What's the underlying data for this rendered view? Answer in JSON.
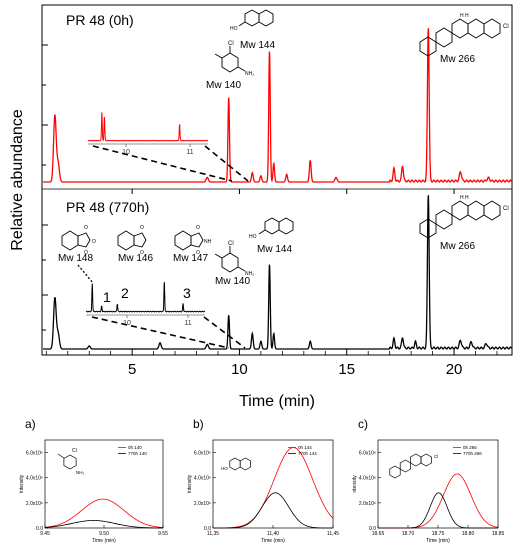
{
  "chart_data": [
    {
      "type": "line",
      "title": "",
      "xlabel": "Time (min)",
      "ylabel": "Relative abundance",
      "xlim": [
        0.8,
        22.7
      ],
      "xticks": [
        5,
        10,
        15,
        20
      ],
      "grid": false,
      "panels": [
        {
          "label": "PR 48 (0h)",
          "color": "#ff0000",
          "baseline": 0.0,
          "peaks": [
            {
              "t": 1.4,
              "h": 0.43,
              "w": 0.06
            },
            {
              "t": 1.55,
              "h": 0.12,
              "w": 0.06
            },
            {
              "t": 8.5,
              "h": 0.03,
              "w": 0.05
            },
            {
              "t": 9.5,
              "h": 0.55,
              "w": 0.035
            },
            {
              "t": 10.6,
              "h": 0.06,
              "w": 0.04
            },
            {
              "t": 11.0,
              "h": 0.04,
              "w": 0.04
            },
            {
              "t": 11.4,
              "h": 0.85,
              "w": 0.035
            },
            {
              "t": 11.6,
              "h": 0.12,
              "w": 0.035
            },
            {
              "t": 12.2,
              "h": 0.05,
              "w": 0.04
            },
            {
              "t": 13.3,
              "h": 0.14,
              "w": 0.04
            },
            {
              "t": 14.5,
              "h": 0.03,
              "w": 0.05
            },
            {
              "t": 17.2,
              "h": 0.08,
              "w": 0.04
            },
            {
              "t": 17.6,
              "h": 0.1,
              "w": 0.04
            },
            {
              "t": 18.8,
              "h": 1.0,
              "w": 0.04
            },
            {
              "t": 20.3,
              "h": 0.06,
              "w": 0.05
            },
            {
              "t": 21.6,
              "h": 0.02,
              "w": 0.06
            }
          ],
          "inset": {
            "xticks": [
              "10",
              "11"
            ],
            "peaks": [
              {
                "t": 9.62,
                "h": 0.95
              },
              {
                "t": 9.66,
                "h": 0.8
              },
              {
                "t": 10.85,
                "h": 0.55
              }
            ]
          },
          "annotations": [
            {
              "text": "Mw 140",
              "t": 9.5
            },
            {
              "text": "Mw 144",
              "t": 11.4
            },
            {
              "text": "Mw 266",
              "t": 18.8
            }
          ]
        },
        {
          "label": "PR 48 (770h)",
          "color": "#000000",
          "baseline": 0.0,
          "peaks": [
            {
              "t": 1.4,
              "h": 0.33,
              "w": 0.06
            },
            {
              "t": 1.55,
              "h": 0.1,
              "w": 0.06
            },
            {
              "t": 3.0,
              "h": 0.02,
              "w": 0.05
            },
            {
              "t": 6.3,
              "h": 0.04,
              "w": 0.05
            },
            {
              "t": 8.5,
              "h": 0.03,
              "w": 0.05
            },
            {
              "t": 9.5,
              "h": 0.22,
              "w": 0.035
            },
            {
              "t": 10.6,
              "h": 0.1,
              "w": 0.04
            },
            {
              "t": 11.0,
              "h": 0.05,
              "w": 0.04
            },
            {
              "t": 11.4,
              "h": 0.55,
              "w": 0.035
            },
            {
              "t": 11.6,
              "h": 0.1,
              "w": 0.035
            },
            {
              "t": 13.3,
              "h": 0.05,
              "w": 0.04
            },
            {
              "t": 17.2,
              "h": 0.06,
              "w": 0.04
            },
            {
              "t": 17.6,
              "h": 0.07,
              "w": 0.04
            },
            {
              "t": 18.2,
              "h": 0.04,
              "w": 0.04
            },
            {
              "t": 18.8,
              "h": 1.0,
              "w": 0.04
            },
            {
              "t": 20.3,
              "h": 0.05,
              "w": 0.05
            },
            {
              "t": 20.8,
              "h": 0.04,
              "w": 0.05
            },
            {
              "t": 21.5,
              "h": 0.03,
              "w": 0.05
            }
          ],
          "inset": {
            "xticks": [
              "10",
              "11"
            ],
            "peaks": [
              {
                "t": 9.3,
                "h": 0.78
              },
              {
                "t": 9.45,
                "h": 0.15
              },
              {
                "t": 9.7,
                "h": 0.22
              },
              {
                "t": 10.45,
                "h": 0.85
              },
              {
                "t": 10.75,
                "h": 0.22
              }
            ],
            "peak_labels": [
              "1",
              "2",
              "3"
            ]
          },
          "annotations": [
            {
              "text": "Mw 148"
            },
            {
              "text": "Mw 146"
            },
            {
              "text": "Mw 147"
            },
            {
              "text": "Mw 140",
              "t": 9.5
            },
            {
              "text": "Mw 144",
              "t": 11.4
            },
            {
              "text": "Mw 266",
              "t": 18.8
            }
          ]
        }
      ]
    },
    {
      "type": "line",
      "panel_label": "a)",
      "xlabel": "Time (min)",
      "ylabel": "Intensity",
      "xlim": [
        9.45,
        9.55
      ],
      "ylim": [
        0,
        7000000
      ],
      "xticks": [
        "9.45",
        "9.50",
        "9.55"
      ],
      "yticks": [
        "0.0",
        "2.0x10⁶",
        "4.0x10⁶",
        "6.0x10⁶"
      ],
      "series": [
        {
          "name": "0h 140",
          "color": "#ff0000",
          "center": 9.499,
          "sigma": 0.018,
          "peak": 2300000
        },
        {
          "name": "770h 140",
          "color": "#000000",
          "center": 9.491,
          "sigma": 0.018,
          "peak": 600000
        }
      ],
      "grid": false,
      "legend": "top-right"
    },
    {
      "type": "line",
      "panel_label": "b)",
      "xlabel": "Time (min)",
      "ylabel": "Intensity",
      "xlim": [
        11.35,
        11.45
      ],
      "ylim": [
        0,
        7000000
      ],
      "xticks": [
        "11,35",
        "11,40",
        "11,45"
      ],
      "yticks": [
        "0.0",
        "2.0x10⁶",
        "4.0x10⁶",
        "6.0x10⁶"
      ],
      "series": [
        {
          "name": "0h 144",
          "color": "#ff0000",
          "center": 11.417,
          "sigma": 0.016,
          "peak": 6400000
        },
        {
          "name": "770h 144",
          "color": "#000000",
          "center": 11.402,
          "sigma": 0.011,
          "peak": 2800000
        }
      ],
      "grid": false,
      "legend": "top-right"
    },
    {
      "type": "line",
      "panel_label": "c)",
      "xlabel": "Time (min)",
      "ylabel": "ntensity",
      "xlim": [
        18.65,
        18.85
      ],
      "ylim": [
        0,
        7000000
      ],
      "xticks": [
        "18.65",
        "18.70",
        "18.75",
        "18.80",
        "18.85"
      ],
      "yticks": [
        "0.0",
        "2.0x10⁶",
        "4.0x10⁶",
        "6.0x10⁶"
      ],
      "series": [
        {
          "name": "0h 266",
          "color": "#ff0000",
          "center": 18.782,
          "sigma": 0.023,
          "peak": 4300000
        },
        {
          "name": "770h 266",
          "color": "#000000",
          "center": 18.751,
          "sigma": 0.014,
          "peak": 2800000
        }
      ],
      "grid": false,
      "legend": "top-right"
    }
  ]
}
